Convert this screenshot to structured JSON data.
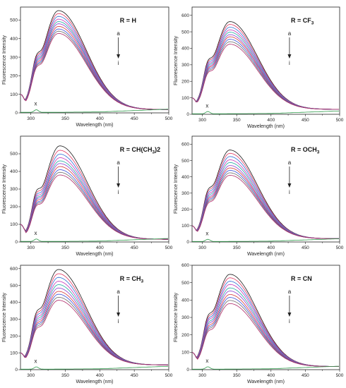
{
  "chart_data": [
    {
      "type": "line",
      "label": {
        "main": "R = H",
        "sub": "",
        "tail": ""
      },
      "xlabel": "Wavelength (nm)",
      "ylabel": "Fluorescence Intensity",
      "xlim": [
        285,
        500
      ],
      "ylim": [
        0,
        570
      ],
      "xticks": [
        "300",
        "350",
        "400",
        "450",
        "500"
      ],
      "yticks": [
        "0",
        "100",
        "200",
        "300",
        "400",
        "500"
      ],
      "ytick_values": [
        0,
        100,
        200,
        300,
        400,
        500
      ],
      "arrow": {
        "start": "a",
        "end": "i"
      },
      "blank_label": "x",
      "peak_x": 340,
      "series_peaks": [
        551,
        535,
        520,
        505,
        492,
        480,
        466,
        452,
        440,
        428
      ],
      "start_y": 100,
      "end_y": 18,
      "shoulder": 0.3
    },
    {
      "type": "line",
      "label": {
        "main": "R = CF",
        "sub": "3",
        "tail": ""
      },
      "xlabel": "Wavelength (nm)",
      "ylabel": "Fluorescence Intensity",
      "xlim": [
        285,
        500
      ],
      "ylim": [
        0,
        650
      ],
      "xticks": [
        "300",
        "350",
        "400",
        "450",
        "500"
      ],
      "yticks": [
        "0",
        "100",
        "200",
        "300",
        "400",
        "500",
        "600"
      ],
      "ytick_values": [
        0,
        100,
        200,
        300,
        400,
        500,
        600
      ],
      "arrow": {
        "start": "a",
        "end": "i"
      },
      "blank_label": "x",
      "peak_x": 340,
      "series_peaks": [
        562,
        545,
        528,
        512,
        498,
        483,
        470,
        455,
        440,
        425
      ],
      "start_y": 100,
      "end_y": 30,
      "shoulder": 0.3
    },
    {
      "type": "line",
      "label": {
        "main": "R = CH(CH",
        "sub": "3",
        "tail": ")2"
      },
      "xlabel": "Wavelength (nm)",
      "ylabel": "Fluorescence Intensity",
      "xlim": [
        285,
        500
      ],
      "ylim": [
        0,
        600
      ],
      "xticks": [
        "300",
        "350",
        "400",
        "450",
        "500"
      ],
      "yticks": [
        "0",
        "100",
        "200",
        "300",
        "400",
        "500"
      ],
      "ytick_values": [
        0,
        100,
        200,
        300,
        400,
        500
      ],
      "arrow": {
        "start": "a",
        "end": "i"
      },
      "blank_label": "x",
      "peak_x": 342,
      "series_peaks": [
        545,
        520,
        498,
        478,
        460,
        445,
        428,
        410,
        395,
        380
      ],
      "start_y": 100,
      "end_y": 15,
      "shoulder": 0.3
    },
    {
      "type": "line",
      "label": {
        "main": "R = OCH",
        "sub": "3",
        "tail": ""
      },
      "xlabel": "Wavelength (nm)",
      "ylabel": "Fluorescence Intensity",
      "xlim": [
        285,
        500
      ],
      "ylim": [
        0,
        650
      ],
      "xticks": [
        "300",
        "350",
        "400",
        "450",
        "500"
      ],
      "yticks": [
        "0",
        "100",
        "200",
        "300",
        "400",
        "500",
        "600"
      ],
      "ytick_values": [
        0,
        100,
        200,
        300,
        400,
        500,
        600
      ],
      "arrow": {
        "start": "a",
        "end": "i"
      },
      "blank_label": "x",
      "peak_x": 340,
      "series_peaks": [
        565,
        545,
        525,
        505,
        488,
        470,
        455,
        440,
        425,
        410
      ],
      "start_y": 100,
      "end_y": 20,
      "shoulder": 0.3
    },
    {
      "type": "line",
      "label": {
        "main": "R = CH",
        "sub": "3",
        "tail": ""
      },
      "xlabel": "Wavelength (nm)",
      "ylabel": "Fluorescence Intensity",
      "xlim": [
        285,
        500
      ],
      "ylim": [
        0,
        620
      ],
      "xticks": [
        "300",
        "350",
        "400",
        "450",
        "500"
      ],
      "yticks": [
        "0",
        "100",
        "200",
        "300",
        "400",
        "500",
        "600"
      ],
      "ytick_values": [
        0,
        100,
        200,
        300,
        400,
        500,
        600
      ],
      "arrow": {
        "start": "a",
        "end": "i"
      },
      "blank_label": "x",
      "peak_x": 340,
      "series_peaks": [
        595,
        570,
        548,
        525,
        505,
        485,
        465,
        448,
        430,
        412
      ],
      "start_y": 100,
      "end_y": 28,
      "shoulder": 0.3
    },
    {
      "type": "line",
      "label": {
        "main": "R = CN",
        "sub": "",
        "tail": ""
      },
      "xlabel": "Wavelength (nm)",
      "ylabel": "Fluorescence Intensity",
      "xlim": [
        285,
        500
      ],
      "ylim": [
        0,
        600
      ],
      "xticks": [
        "300",
        "350",
        "400",
        "450",
        "500"
      ],
      "yticks": [
        "0",
        "100",
        "200",
        "300",
        "400",
        "500",
        "600"
      ],
      "ytick_values": [
        0,
        100,
        200,
        300,
        400,
        500,
        600
      ],
      "arrow": {
        "start": "a",
        "end": "i"
      },
      "blank_label": "x",
      "peak_x": 340,
      "series_peaks": [
        548,
        528,
        508,
        490,
        470,
        452,
        432,
        415,
        398,
        380
      ],
      "start_y": 100,
      "end_y": 18,
      "shoulder": 0.3
    }
  ],
  "series_colors": [
    "#1a1a1a",
    "#e0355f",
    "#2f6fd6",
    "#c535b8",
    "#22a8a0",
    "#8a3fd0",
    "#d43a3a",
    "#3a4fd8",
    "#6a6a6a",
    "#b02a6a"
  ],
  "blank_color": "#2e9a4a"
}
